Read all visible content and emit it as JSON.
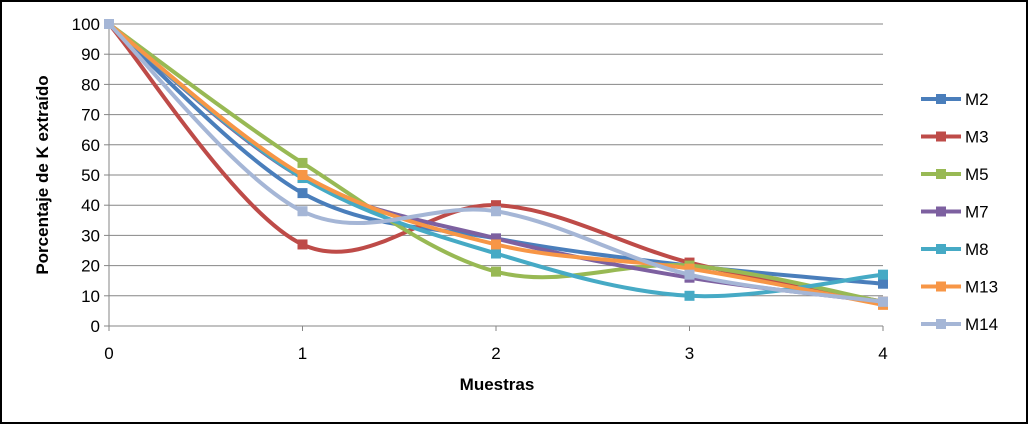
{
  "chart_data": {
    "type": "line",
    "xlabel": "Muestras",
    "ylabel": "Porcentaje de K extraído",
    "x": [
      0,
      1,
      2,
      3,
      4
    ],
    "xlim": [
      0,
      4
    ],
    "ylim": [
      0,
      100
    ],
    "y_ticks": [
      0,
      10,
      20,
      30,
      40,
      50,
      60,
      70,
      80,
      90,
      100
    ],
    "x_ticks": [
      0,
      1,
      2,
      3,
      4
    ],
    "grid": "horizontal",
    "smoothed": true,
    "legend_position": "right",
    "series": [
      {
        "name": "M2",
        "color": "#4a7ebb",
        "values": [
          100,
          44,
          29,
          20,
          14
        ]
      },
      {
        "name": "M3",
        "color": "#be4b48",
        "values": [
          100,
          27,
          40,
          21,
          8
        ]
      },
      {
        "name": "M5",
        "color": "#98b954",
        "values": [
          100,
          54,
          18,
          20,
          8
        ]
      },
      {
        "name": "M7",
        "color": "#7d60a0",
        "values": [
          100,
          49,
          29,
          16,
          8
        ]
      },
      {
        "name": "M8",
        "color": "#46aac5",
        "values": [
          100,
          49,
          24,
          10,
          17
        ]
      },
      {
        "name": "M13",
        "color": "#f79646",
        "values": [
          100,
          50,
          27,
          19,
          7
        ]
      },
      {
        "name": "M14",
        "color": "#a5b6d6",
        "values": [
          100,
          38,
          38,
          17,
          8
        ]
      }
    ]
  }
}
